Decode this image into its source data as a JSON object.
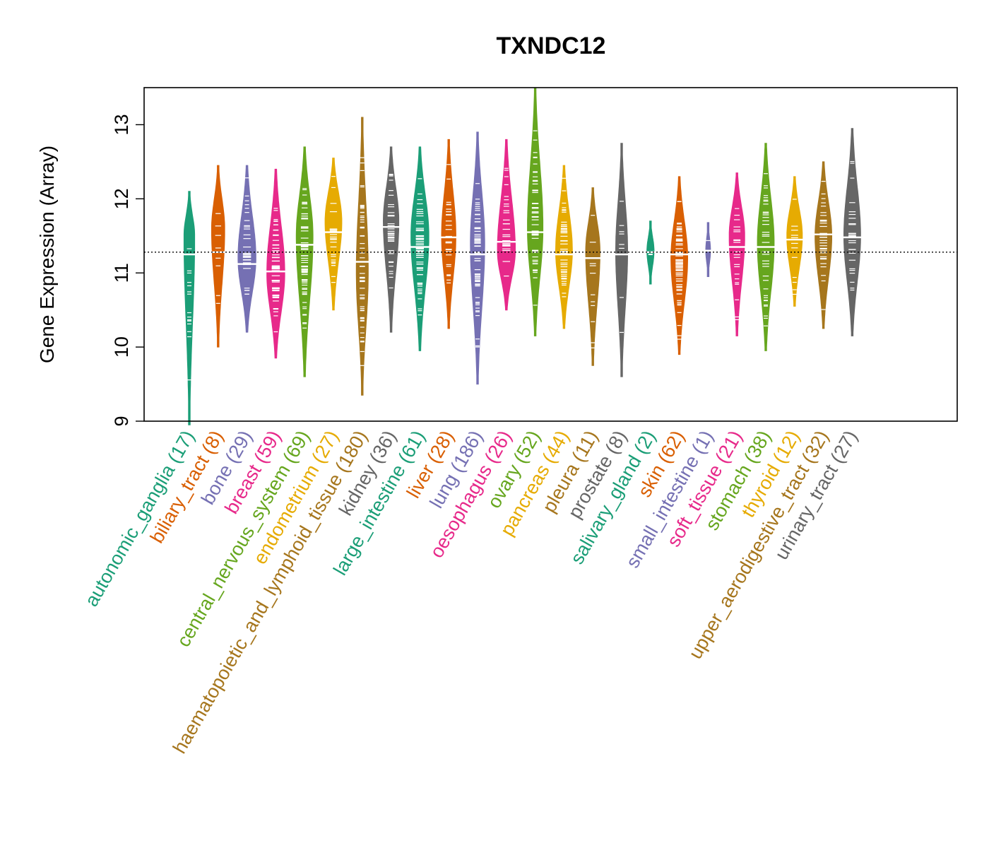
{
  "chart_data": {
    "type": "beanplot",
    "title": "TXNDC12",
    "xlabel": "",
    "ylabel": "Gene Expression (Array)",
    "ylim": [
      9,
      13.5
    ],
    "yticks": [
      9,
      10,
      11,
      12,
      13
    ],
    "reference_line": 11.28,
    "grid": false,
    "legend": "none",
    "categories": [
      {
        "name": "autonomic_ganglia",
        "n": 17,
        "label": "autonomic_ganglia (17)",
        "color": "#1B9E77",
        "median": 11.25,
        "min": 8.95,
        "max": 12.1,
        "peak": 11.5,
        "width": 0.45
      },
      {
        "name": "biliary_tract",
        "n": 8,
        "label": "biliary_tract (8)",
        "color": "#D95F02",
        "median": 11.28,
        "min": 10.0,
        "max": 12.45,
        "peak": 11.6,
        "width": 0.55
      },
      {
        "name": "bone",
        "n": 29,
        "label": "bone (29)",
        "color": "#7570B3",
        "median": 11.12,
        "min": 10.2,
        "max": 12.45,
        "peak": 11.2,
        "width": 0.75
      },
      {
        "name": "breast",
        "n": 59,
        "label": "breast (59)",
        "color": "#E7298A",
        "median": 11.02,
        "min": 9.85,
        "max": 12.4,
        "peak": 11.0,
        "width": 0.75
      },
      {
        "name": "central_nervous_system",
        "n": 69,
        "label": "central_nervous_system (69)",
        "color": "#66A61E",
        "median": 11.38,
        "min": 9.6,
        "max": 12.7,
        "peak": 11.5,
        "width": 0.7
      },
      {
        "name": "endometrium",
        "n": 27,
        "label": "endometrium (27)",
        "color": "#E6AB02",
        "median": 11.55,
        "min": 10.5,
        "max": 12.55,
        "peak": 11.7,
        "width": 0.7
      },
      {
        "name": "haematopoietic_and_lymphoid_tissue",
        "n": 180,
        "label": "haematopoietic_and_lymphoid_tissue (180)",
        "color": "#A6761D",
        "median": 11.15,
        "min": 9.35,
        "max": 13.1,
        "peak": 11.0,
        "width": 0.5
      },
      {
        "name": "kidney",
        "n": 36,
        "label": "kidney (36)",
        "color": "#666666",
        "median": 11.62,
        "min": 10.2,
        "max": 12.7,
        "peak": 11.7,
        "width": 0.65
      },
      {
        "name": "large_intestine",
        "n": 61,
        "label": "large_intestine (61)",
        "color": "#1B9E77",
        "median": 11.35,
        "min": 9.95,
        "max": 12.7,
        "peak": 11.5,
        "width": 0.75
      },
      {
        "name": "liver",
        "n": 28,
        "label": "liver (28)",
        "color": "#D95F02",
        "median": 11.48,
        "min": 10.25,
        "max": 12.8,
        "peak": 11.5,
        "width": 0.6
      },
      {
        "name": "lung",
        "n": 186,
        "label": "lung (186)",
        "color": "#7570B3",
        "median": 11.25,
        "min": 9.5,
        "max": 12.9,
        "peak": 11.4,
        "width": 0.6
      },
      {
        "name": "oesophagus",
        "n": 26,
        "label": "oesophagus (26)",
        "color": "#E7298A",
        "median": 11.42,
        "min": 10.5,
        "max": 12.8,
        "peak": 11.3,
        "width": 0.75
      },
      {
        "name": "ovary",
        "n": 52,
        "label": "ovary (52)",
        "color": "#66A61E",
        "median": 11.55,
        "min": 10.15,
        "max": 13.5,
        "peak": 11.6,
        "width": 0.65
      },
      {
        "name": "pancreas",
        "n": 44,
        "label": "pancreas (44)",
        "color": "#E6AB02",
        "median": 11.25,
        "min": 10.25,
        "max": 12.45,
        "peak": 11.3,
        "width": 0.7
      },
      {
        "name": "pleura",
        "n": 11,
        "label": "pleura (11)",
        "color": "#A6761D",
        "median": 11.2,
        "min": 9.75,
        "max": 12.15,
        "peak": 11.3,
        "width": 0.6
      },
      {
        "name": "prostate",
        "n": 8,
        "label": "prostate (8)",
        "color": "#666666",
        "median": 11.25,
        "min": 9.6,
        "max": 12.75,
        "peak": 11.3,
        "width": 0.5
      },
      {
        "name": "salivary_gland",
        "n": 2,
        "label": "salivary_gland (2)",
        "color": "#1B9E77",
        "median": 11.28,
        "min": 10.85,
        "max": 11.7,
        "peak": 11.3,
        "width": 0.3
      },
      {
        "name": "skin",
        "n": 62,
        "label": "skin (62)",
        "color": "#D95F02",
        "median": 11.25,
        "min": 9.9,
        "max": 12.3,
        "peak": 11.2,
        "width": 0.7
      },
      {
        "name": "small_intestine",
        "n": 1,
        "label": "small_intestine (1)",
        "color": "#7570B3",
        "median": 11.3,
        "min": 10.95,
        "max": 11.68,
        "peak": 11.3,
        "width": 0.2
      },
      {
        "name": "soft_tissue",
        "n": 21,
        "label": "soft_tissue (21)",
        "color": "#E7298A",
        "median": 11.35,
        "min": 10.15,
        "max": 12.35,
        "peak": 11.5,
        "width": 0.65
      },
      {
        "name": "stomach",
        "n": 38,
        "label": "stomach (38)",
        "color": "#66A61E",
        "median": 11.35,
        "min": 9.95,
        "max": 12.75,
        "peak": 11.4,
        "width": 0.7
      },
      {
        "name": "thyroid",
        "n": 12,
        "label": "thyroid (12)",
        "color": "#E6AB02",
        "median": 11.45,
        "min": 10.55,
        "max": 12.3,
        "peak": 11.5,
        "width": 0.65
      },
      {
        "name": "upper_aerodigestive_tract",
        "n": 32,
        "label": "upper_aerodigestive_tract (32)",
        "color": "#A6761D",
        "median": 11.52,
        "min": 10.25,
        "max": 12.5,
        "peak": 11.5,
        "width": 0.7
      },
      {
        "name": "urinary_tract",
        "n": 27,
        "label": "urinary_tract (27)",
        "color": "#666666",
        "median": 11.48,
        "min": 10.15,
        "max": 12.95,
        "peak": 11.5,
        "width": 0.7
      }
    ]
  }
}
